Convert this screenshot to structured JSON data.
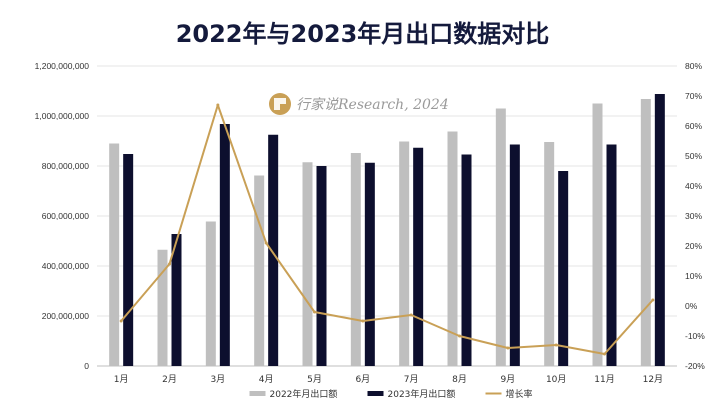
{
  "chart_data": {
    "type": "bar",
    "title": "2022年与2023年月出口数据对比",
    "categories": [
      "1月",
      "2月",
      "3月",
      "4月",
      "5月",
      "6月",
      "7月",
      "8月",
      "9月",
      "10月",
      "11月",
      "12月"
    ],
    "series": [
      {
        "name": "2022年月出口额",
        "kind": "bar",
        "axis": "left",
        "color": "#bfbfbf",
        "values": [
          890000000,
          465000000,
          578000000,
          762000000,
          815000000,
          852000000,
          898000000,
          938000000,
          1030000000,
          896000000,
          1050000000,
          1068000000
        ]
      },
      {
        "name": "2023年月出口额",
        "kind": "bar",
        "axis": "left",
        "color": "#0d0f2e",
        "values": [
          848000000,
          528000000,
          968000000,
          925000000,
          800000000,
          813000000,
          873000000,
          846000000,
          886000000,
          780000000,
          886000000,
          1088000000
        ]
      },
      {
        "name": "增长率",
        "kind": "line",
        "axis": "right",
        "color": "#c9a056",
        "values": [
          -0.05,
          0.14,
          0.67,
          0.21,
          -0.02,
          -0.05,
          -0.03,
          -0.1,
          -0.14,
          -0.13,
          -0.16,
          0.02
        ]
      }
    ],
    "y_left": {
      "min": 0,
      "max": 1200000000,
      "step": 200000000,
      "tick_labels": [
        "0",
        "200,000,000",
        "400,000,000",
        "600,000,000",
        "800,000,000",
        "1,000,000,000",
        "1,200,000,000"
      ]
    },
    "y_right": {
      "min": -0.2,
      "max": 0.8,
      "step": 0.1,
      "tick_labels": [
        "-20%",
        "-10%",
        "0%",
        "10%",
        "20%",
        "30%",
        "40%",
        "50%",
        "60%",
        "70%",
        "80%"
      ]
    },
    "legend_position": "bottom",
    "grid": true
  },
  "watermark": {
    "text": "行家说Research, 2024",
    "icon": "brand-logo-icon"
  }
}
